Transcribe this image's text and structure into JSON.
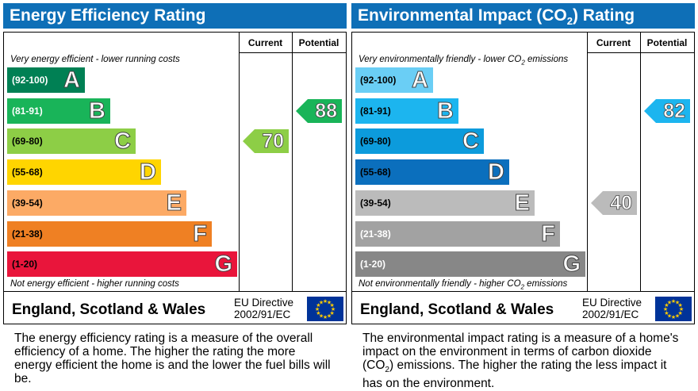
{
  "energy": {
    "title": "Energy Efficiency Rating",
    "col_current": "Current",
    "col_potential": "Potential",
    "top_note": "Very energy efficient - lower running costs",
    "bottom_note": "Not energy efficient - higher running costs",
    "bands": [
      {
        "range": "(92-100)",
        "letter": "A",
        "color": "#008054",
        "text_color": "#ffffff"
      },
      {
        "range": "(81-91)",
        "letter": "B",
        "color": "#19b459",
        "text_color": "#ffffff"
      },
      {
        "range": "(69-80)",
        "letter": "C",
        "color": "#8dce46",
        "text_color": "#000000"
      },
      {
        "range": "(55-68)",
        "letter": "D",
        "color": "#ffd500",
        "text_color": "#000000"
      },
      {
        "range": "(39-54)",
        "letter": "E",
        "color": "#fcaa65",
        "text_color": "#000000"
      },
      {
        "range": "(21-38)",
        "letter": "F",
        "color": "#ef8023",
        "text_color": "#000000"
      },
      {
        "range": "(1-20)",
        "letter": "G",
        "color": "#e9153b",
        "text_color": "#000000"
      }
    ],
    "current": {
      "value": "70",
      "color": "#8dce46"
    },
    "potential": {
      "value": "88",
      "color": "#19b459"
    },
    "footer_name": "England, Scotland & Wales",
    "directive_line1": "EU Directive",
    "directive_line2": "2002/91/EC",
    "description": "The energy efficiency rating is a measure of the overall efficiency of a home. The higher the rating the more energy efficient the home is and the lower the fuel bills will be."
  },
  "environment": {
    "title_main": "Environmental Impact (CO",
    "title_sub": "2",
    "title_end": ") Rating",
    "col_current": "Current",
    "col_potential": "Potential",
    "top_note_main": "Very environmentally friendly - lower CO",
    "top_note_sub": "2",
    "top_note_end": " emissions",
    "bottom_note_main": "Not environmentally friendly - higher CO",
    "bottom_note_sub": "2",
    "bottom_note_end": " emissions",
    "bands": [
      {
        "range": "(92-100)",
        "letter": "A",
        "color": "#6acef5",
        "text_color": "#000000"
      },
      {
        "range": "(81-91)",
        "letter": "B",
        "color": "#1cb5ef",
        "text_color": "#000000"
      },
      {
        "range": "(69-80)",
        "letter": "C",
        "color": "#0c9bdc",
        "text_color": "#000000"
      },
      {
        "range": "(55-68)",
        "letter": "D",
        "color": "#0b6fbd",
        "text_color": "#000000"
      },
      {
        "range": "(39-54)",
        "letter": "E",
        "color": "#bbbbbb",
        "text_color": "#000000"
      },
      {
        "range": "(21-38)",
        "letter": "F",
        "color": "#a2a2a2",
        "text_color": "#ffffff"
      },
      {
        "range": "(1-20)",
        "letter": "G",
        "color": "#878787",
        "text_color": "#ffffff"
      }
    ],
    "current": {
      "value": "40",
      "color": "#bbbbbb"
    },
    "potential": {
      "value": "82",
      "color": "#1cb5ef"
    },
    "footer_name": "England, Scotland & Wales",
    "directive_line1": "EU Directive",
    "directive_line2": "2002/91/EC",
    "desc_main": "The environmental impact rating is a measure of a home's impact on the environment in terms of carbon dioxide (CO",
    "desc_sub": "2",
    "desc_end": ") emissions. The higher the rating the less impact it has on the environment."
  }
}
